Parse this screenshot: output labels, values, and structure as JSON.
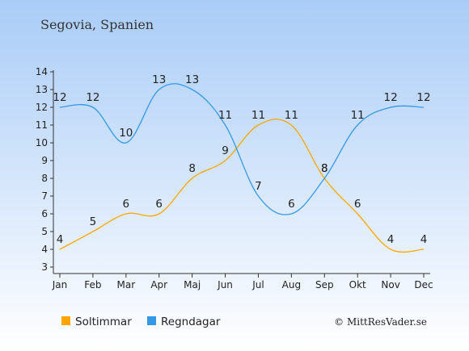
{
  "chart_data": {
    "type": "line",
    "title": "Segovia, Spanien",
    "categories": [
      "Jan",
      "Feb",
      "Mar",
      "Apr",
      "Maj",
      "Jun",
      "Jul",
      "Aug",
      "Sep",
      "Okt",
      "Nov",
      "Dec"
    ],
    "ylim": [
      3,
      14
    ],
    "yticks": [
      3,
      4,
      5,
      6,
      7,
      8,
      9,
      10,
      11,
      12,
      13,
      14
    ],
    "grid": false,
    "legend_position": "bottom-left",
    "series": [
      {
        "name": "Soltimmar",
        "color": "#FFA500",
        "values": [
          4,
          5,
          6,
          6,
          8,
          9,
          11,
          11,
          8,
          6,
          4,
          4
        ]
      },
      {
        "name": "Regndagar",
        "color": "#3399E6",
        "values": [
          12,
          12,
          10,
          13,
          13,
          11,
          7,
          6,
          8,
          11,
          12,
          12
        ]
      }
    ],
    "credit": "© MittResVader.se"
  },
  "colors": {
    "bg_top": "#A9CCF7",
    "bg_bottom": "#FFFFFF",
    "axis": "#333333"
  }
}
